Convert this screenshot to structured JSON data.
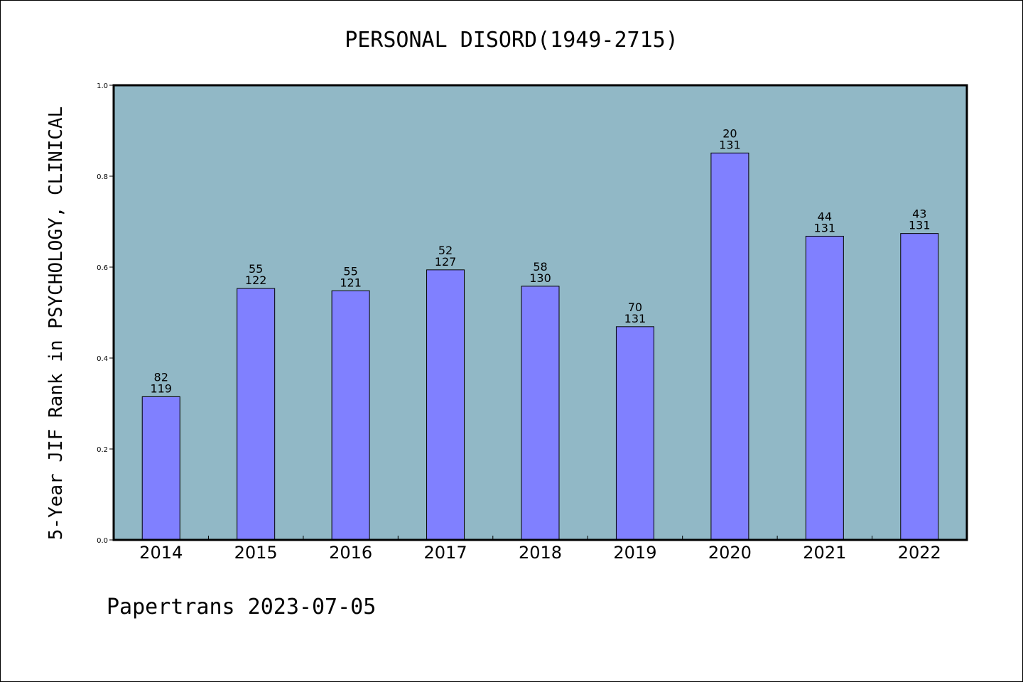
{
  "chart_data": {
    "type": "bar",
    "title": "PERSONAL DISORD(1949-2715)",
    "xlabel": "",
    "ylabel": "5-Year JIF Rank in PSYCHOLOGY, CLINICAL",
    "ylim": [
      0,
      1.0
    ],
    "yticks": [
      "0.0",
      "0.2",
      "0.4",
      "0.6",
      "0.8",
      "1.0"
    ],
    "categories": [
      "2014",
      "2015",
      "2016",
      "2017",
      "2018",
      "2019",
      "2020",
      "2021",
      "2022"
    ],
    "values": [
      0.315,
      0.553,
      0.548,
      0.594,
      0.558,
      0.469,
      0.851,
      0.668,
      0.674
    ],
    "ranks": [
      "82",
      "55",
      "55",
      "52",
      "58",
      "70",
      "20",
      "44",
      "43"
    ],
    "totals": [
      "119",
      "122",
      "121",
      "127",
      "130",
      "131",
      "131",
      "131",
      "131"
    ],
    "grid": false,
    "colors": {
      "plot_bg": "#91b8c6",
      "bar": "#8080ff",
      "bar_edge": "#000000"
    }
  },
  "footer": "Papertrans 2023-07-05"
}
